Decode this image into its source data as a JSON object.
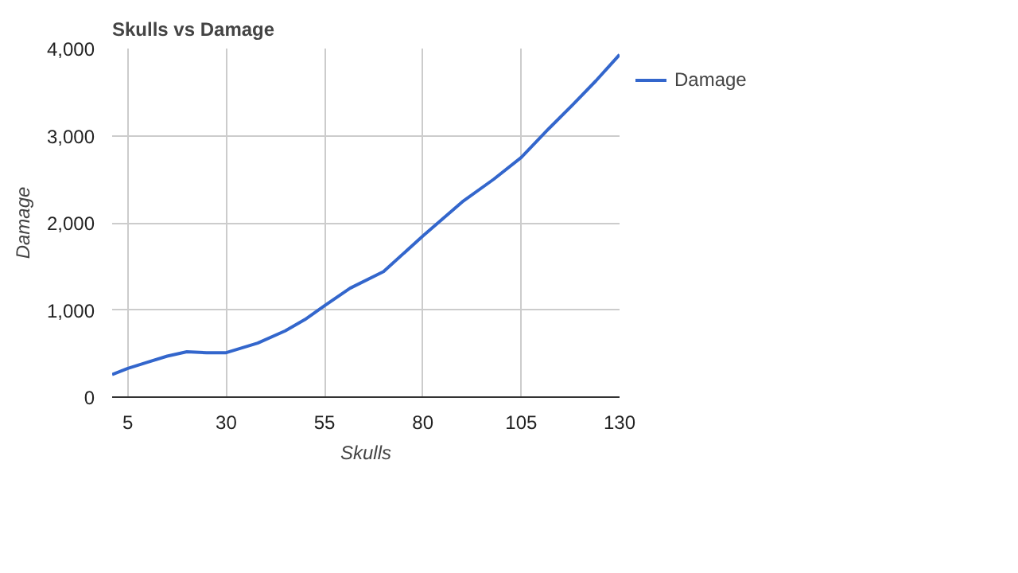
{
  "chart_data": {
    "type": "line",
    "title": "Skulls vs Damage",
    "xlabel": "Skulls",
    "ylabel": "Damage",
    "x": [
      1,
      5,
      10,
      15,
      20,
      25,
      30,
      38,
      45,
      50,
      55,
      61.5,
      70,
      80,
      90,
      98,
      105,
      112,
      118,
      124,
      130
    ],
    "series": [
      {
        "name": "Damage",
        "color": "#3366cc",
        "values": [
          260,
          330,
          400,
          470,
          520,
          510,
          510,
          620,
          760,
          890,
          1050,
          1250,
          1440,
          1850,
          2240,
          2500,
          2750,
          3080,
          3350,
          3630,
          3930
        ]
      }
    ],
    "xlim": [
      1,
      130
    ],
    "xticks": [
      5,
      30,
      55,
      80,
      105,
      130
    ],
    "ylim": [
      0,
      4000
    ],
    "yticks": [
      {
        "value": 0,
        "label": "0"
      },
      {
        "value": 1000,
        "label": "1,000"
      },
      {
        "value": 2000,
        "label": "2,000"
      },
      {
        "value": 3000,
        "label": "3,000"
      },
      {
        "value": 4000,
        "label": "4,000"
      }
    ],
    "grid": true,
    "legend": "right",
    "line_style": "solid"
  }
}
